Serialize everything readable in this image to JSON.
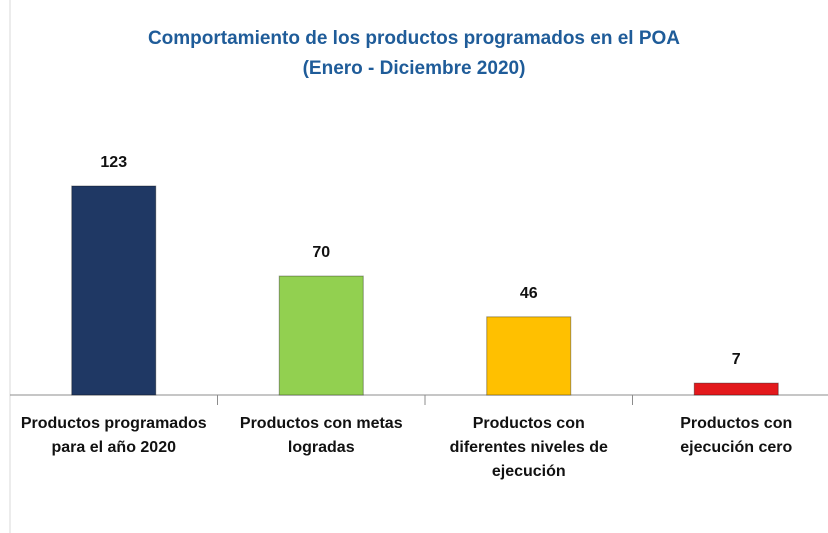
{
  "chart_data": {
    "type": "bar",
    "title": [
      "Comportamiento de los productos programados en el POA",
      "(Enero - Diciembre 2020)"
    ],
    "categories": [
      "Productos programados para el año 2020",
      "Productos con metas logradas",
      "Productos con diferentes niveles de ejecución",
      "Productos con ejecución cero"
    ],
    "values": [
      123,
      70,
      46,
      7
    ],
    "colors": [
      "#1f3864",
      "#92d050",
      "#ffc000",
      "#e3191c"
    ]
  }
}
